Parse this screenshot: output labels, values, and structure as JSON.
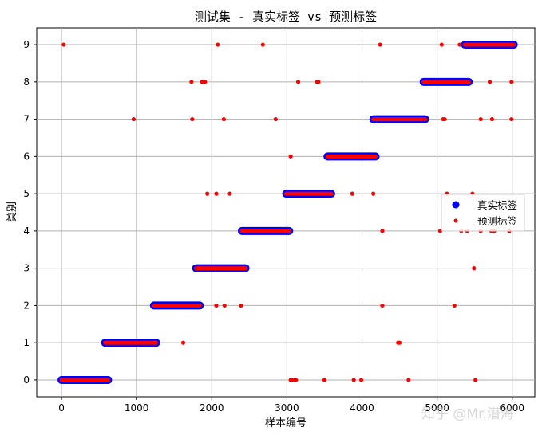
{
  "chart_data": {
    "type": "scatter",
    "title": "测试集 - 真实标签 vs 预测标签",
    "xlabel": "样本编号",
    "ylabel": "类别",
    "xlim": [
      -330,
      6300
    ],
    "ylim": [
      -0.45,
      9.45
    ],
    "xticks": [
      "0",
      "1000",
      "2000",
      "3000",
      "4000",
      "5000",
      "6000"
    ],
    "yticks": [
      "0",
      "1",
      "2",
      "3",
      "4",
      "5",
      "6",
      "7",
      "8",
      "9"
    ],
    "grid": true,
    "legend_position": "center-right",
    "series": [
      {
        "name": "真实标签",
        "color": "#0000ff",
        "marker": "large-circle",
        "segments": [
          {
            "class": 0,
            "x_start": 0,
            "x_end": 620
          },
          {
            "class": 1,
            "x_start": 580,
            "x_end": 1260
          },
          {
            "class": 2,
            "x_start": 1230,
            "x_end": 1840
          },
          {
            "class": 3,
            "x_start": 1790,
            "x_end": 2450
          },
          {
            "class": 4,
            "x_start": 2400,
            "x_end": 3030
          },
          {
            "class": 5,
            "x_start": 2990,
            "x_end": 3590
          },
          {
            "class": 6,
            "x_start": 3540,
            "x_end": 4180
          },
          {
            "class": 7,
            "x_start": 4150,
            "x_end": 4840
          },
          {
            "class": 8,
            "x_start": 4820,
            "x_end": 5420
          },
          {
            "class": 9,
            "x_start": 5370,
            "x_end": 6020
          }
        ]
      },
      {
        "name": "预测标签",
        "color": "#ff0000",
        "marker": "small-circle",
        "follows_true_labels": true,
        "outliers": [
          [
            30,
            9
          ],
          [
            2080,
            9
          ],
          [
            2680,
            9
          ],
          [
            4240,
            9
          ],
          [
            5060,
            9
          ],
          [
            5300,
            9
          ],
          [
            1730,
            8
          ],
          [
            1870,
            8
          ],
          [
            1890,
            8
          ],
          [
            1910,
            8
          ],
          [
            3150,
            8
          ],
          [
            3400,
            8
          ],
          [
            3420,
            8
          ],
          [
            5700,
            8
          ],
          [
            5990,
            8
          ],
          [
            960,
            7
          ],
          [
            1740,
            7
          ],
          [
            2160,
            7
          ],
          [
            2850,
            7
          ],
          [
            5080,
            7
          ],
          [
            5100,
            7
          ],
          [
            5580,
            7
          ],
          [
            5730,
            7
          ],
          [
            5990,
            7
          ],
          [
            3050,
            6
          ],
          [
            1940,
            5
          ],
          [
            2060,
            5
          ],
          [
            2240,
            5
          ],
          [
            3870,
            5
          ],
          [
            4150,
            5
          ],
          [
            5130,
            5
          ],
          [
            5470,
            5
          ],
          [
            4270,
            4
          ],
          [
            5040,
            4
          ],
          [
            5320,
            4
          ],
          [
            5400,
            4
          ],
          [
            5580,
            4
          ],
          [
            5720,
            4
          ],
          [
            5760,
            4
          ],
          [
            5960,
            4
          ],
          [
            5490,
            3
          ],
          [
            2060,
            2
          ],
          [
            2170,
            2
          ],
          [
            2390,
            2
          ],
          [
            4270,
            2
          ],
          [
            5230,
            2
          ],
          [
            1620,
            1
          ],
          [
            4480,
            1
          ],
          [
            4500,
            1
          ],
          [
            3050,
            0
          ],
          [
            3090,
            0
          ],
          [
            3120,
            0
          ],
          [
            3500,
            0
          ],
          [
            3890,
            0
          ],
          [
            3990,
            0
          ],
          [
            4620,
            0
          ],
          [
            5510,
            0
          ]
        ]
      }
    ]
  },
  "watermark": "知乎 @Mr.潜海"
}
